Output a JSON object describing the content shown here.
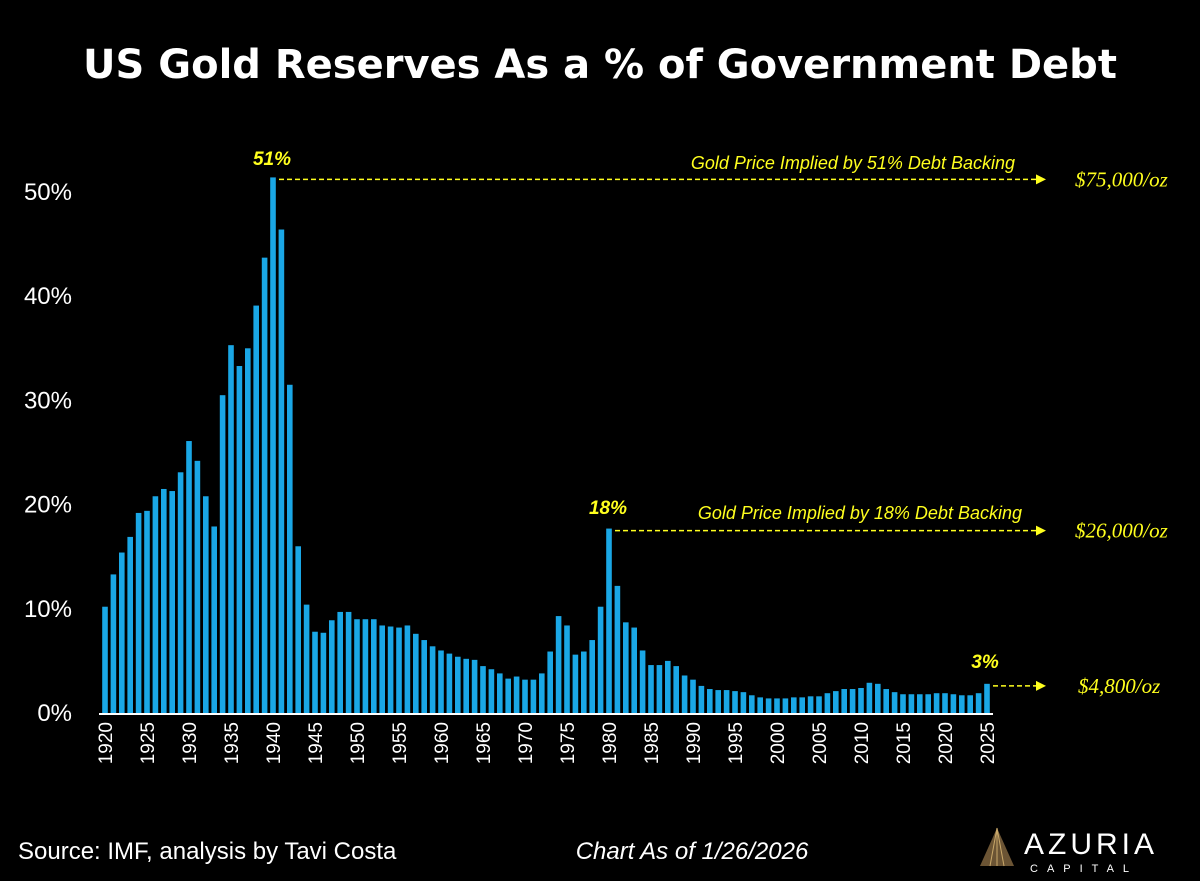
{
  "chart_data": {
    "type": "bar",
    "title": "US Gold Reserves As a % of Government Debt",
    "xlabel": "",
    "ylabel": "",
    "ylim": [
      0,
      55
    ],
    "yticks": [
      "0%",
      "10%",
      "20%",
      "30%",
      "40%",
      "50%"
    ],
    "ytick_values": [
      0,
      10,
      20,
      30,
      40,
      50
    ],
    "grid": false,
    "bar_color": "#1aa7e6",
    "annotation_color": "#ffff1e",
    "x_start": 1920,
    "x_end": 2025,
    "xtick_years": [
      1920,
      1925,
      1930,
      1935,
      1940,
      1945,
      1950,
      1955,
      1960,
      1965,
      1970,
      1975,
      1980,
      1985,
      1990,
      1995,
      2000,
      2005,
      2010,
      2015,
      2020,
      2025
    ],
    "xticks": [
      "1920",
      "1925",
      "1930",
      "1935",
      "1940",
      "1945",
      "1950",
      "1955",
      "1960",
      "1965",
      "1970",
      "1975",
      "1980",
      "1985",
      "1990",
      "1995",
      "2000",
      "2005",
      "2010",
      "2015",
      "2020",
      "2025"
    ],
    "values": [
      10.2,
      13.3,
      15.4,
      16.9,
      19.2,
      19.4,
      20.8,
      21.5,
      21.3,
      23.1,
      26.1,
      24.2,
      20.8,
      17.9,
      30.5,
      35.3,
      33.3,
      35.0,
      39.1,
      43.7,
      51.4,
      46.4,
      31.5,
      16.0,
      10.4,
      7.8,
      7.7,
      8.9,
      9.7,
      9.7,
      9.0,
      9.0,
      9.0,
      8.4,
      8.3,
      8.2,
      8.4,
      7.6,
      7.0,
      6.4,
      6.0,
      5.7,
      5.4,
      5.2,
      5.1,
      4.5,
      4.2,
      3.8,
      3.3,
      3.5,
      3.2,
      3.2,
      3.8,
      5.9,
      9.3,
      8.4,
      5.6,
      5.9,
      7.0,
      10.2,
      17.7,
      12.2,
      8.7,
      8.2,
      6.0,
      4.6,
      4.6,
      5.0,
      4.5,
      3.6,
      3.2,
      2.6,
      2.3,
      2.2,
      2.2,
      2.1,
      2.0,
      1.7,
      1.5,
      1.4,
      1.4,
      1.4,
      1.5,
      1.5,
      1.6,
      1.6,
      1.9,
      2.1,
      2.3,
      2.3,
      2.4,
      2.9,
      2.8,
      2.3,
      2.0,
      1.8,
      1.8,
      1.8,
      1.8,
      1.9,
      1.9,
      1.8,
      1.7,
      1.7,
      1.9,
      2.8
    ],
    "annotations": [
      {
        "year": 1940,
        "value": 51.4,
        "label": "51%",
        "text": "Gold Price Implied by 51% Debt Backing",
        "price": "$75,000/oz"
      },
      {
        "year": 1980,
        "value": 17.7,
        "label": "18%",
        "text": "Gold Price Implied by 18% Debt Backing",
        "price": "$26,000/oz"
      },
      {
        "year": 2025,
        "value": 2.8,
        "label": "3%",
        "text": "",
        "price": "$4,800/oz"
      }
    ]
  },
  "footer": {
    "source": "Source: IMF, analysis by Tavi Costa",
    "date": "Chart As of 1/26/2026",
    "logo_name": "AZURIA",
    "logo_sub": "CAPITAL"
  }
}
